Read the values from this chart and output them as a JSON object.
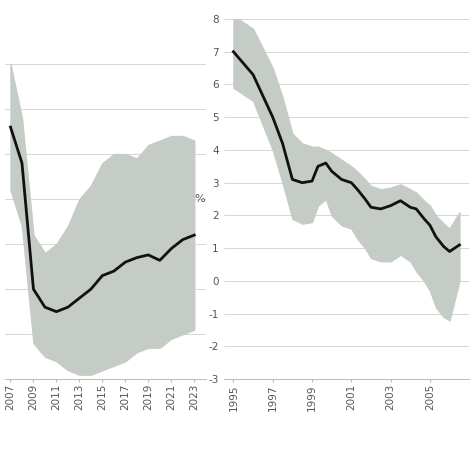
{
  "left_years": [
    2007,
    2008,
    2009,
    2010,
    2011,
    2012,
    2013,
    2014,
    2015,
    2016,
    2017,
    2018,
    2019,
    2020,
    2021,
    2022,
    2023
  ],
  "left_line": [
    3.3,
    2.9,
    1.5,
    1.3,
    1.25,
    1.3,
    1.4,
    1.5,
    1.65,
    1.7,
    1.8,
    1.85,
    1.88,
    1.82,
    1.95,
    2.05,
    2.1
  ],
  "left_upper": [
    4.0,
    3.4,
    2.1,
    1.9,
    2.0,
    2.2,
    2.5,
    2.65,
    2.9,
    3.0,
    3.0,
    2.95,
    3.1,
    3.15,
    3.2,
    3.2,
    3.15
  ],
  "left_lower": [
    2.6,
    2.2,
    0.9,
    0.75,
    0.7,
    0.6,
    0.55,
    0.55,
    0.6,
    0.65,
    0.7,
    0.8,
    0.85,
    0.85,
    0.95,
    1.0,
    1.05
  ],
  "left_ylim": [
    0.5,
    4.5
  ],
  "left_xticks": [
    2007,
    2009,
    2011,
    2013,
    2015,
    2017,
    2019,
    2021,
    2023
  ],
  "left_yticks": [
    1.0,
    1.5,
    2.0,
    2.5,
    3.0,
    3.5,
    4.0
  ],
  "left_xlim": [
    2006.5,
    2024.0
  ],
  "right_x": [
    1995,
    1996,
    1997,
    1997.5,
    1998,
    1998.5,
    1999,
    1999.3,
    1999.7,
    2000,
    2000.5,
    2001,
    2001.3,
    2001.7,
    2002,
    2002.5,
    2003,
    2003.5,
    2004,
    2004.3,
    2004.7,
    2005,
    2005.3,
    2005.7,
    2006,
    2006.5
  ],
  "right_line": [
    7.0,
    6.3,
    5.0,
    4.2,
    3.1,
    3.0,
    3.05,
    3.5,
    3.6,
    3.35,
    3.1,
    3.0,
    2.8,
    2.5,
    2.25,
    2.2,
    2.3,
    2.45,
    2.25,
    2.2,
    1.9,
    1.7,
    1.35,
    1.05,
    0.9,
    1.1
  ],
  "right_upper": [
    8.1,
    7.7,
    6.5,
    5.6,
    4.5,
    4.2,
    4.1,
    4.1,
    4.0,
    3.9,
    3.7,
    3.5,
    3.35,
    3.1,
    2.9,
    2.8,
    2.85,
    2.95,
    2.8,
    2.7,
    2.45,
    2.3,
    2.0,
    1.75,
    1.6,
    2.1
  ],
  "right_lower": [
    5.9,
    5.5,
    4.0,
    3.0,
    1.9,
    1.75,
    1.8,
    2.3,
    2.5,
    2.0,
    1.7,
    1.6,
    1.3,
    1.0,
    0.7,
    0.6,
    0.6,
    0.8,
    0.6,
    0.3,
    0.0,
    -0.3,
    -0.8,
    -1.1,
    -1.2,
    0.0
  ],
  "right_ylim": [
    -3,
    8
  ],
  "right_yticks": [
    -3,
    -2,
    -1,
    0,
    1,
    2,
    3,
    4,
    5,
    6,
    7,
    8
  ],
  "right_xticks": [
    1995,
    1997,
    1999,
    2001,
    2003,
    2005
  ],
  "right_xlim": [
    1994.5,
    2007.0
  ],
  "band_color": "#c5ccc5",
  "line_color": "#111111",
  "line_width": 2.0,
  "background_color": "#ffffff",
  "ylabel": "%",
  "grid_color": "#d0d0d0",
  "grid_linewidth": 0.6,
  "tick_fontsize": 7.5,
  "ylabel_fontsize": 8
}
